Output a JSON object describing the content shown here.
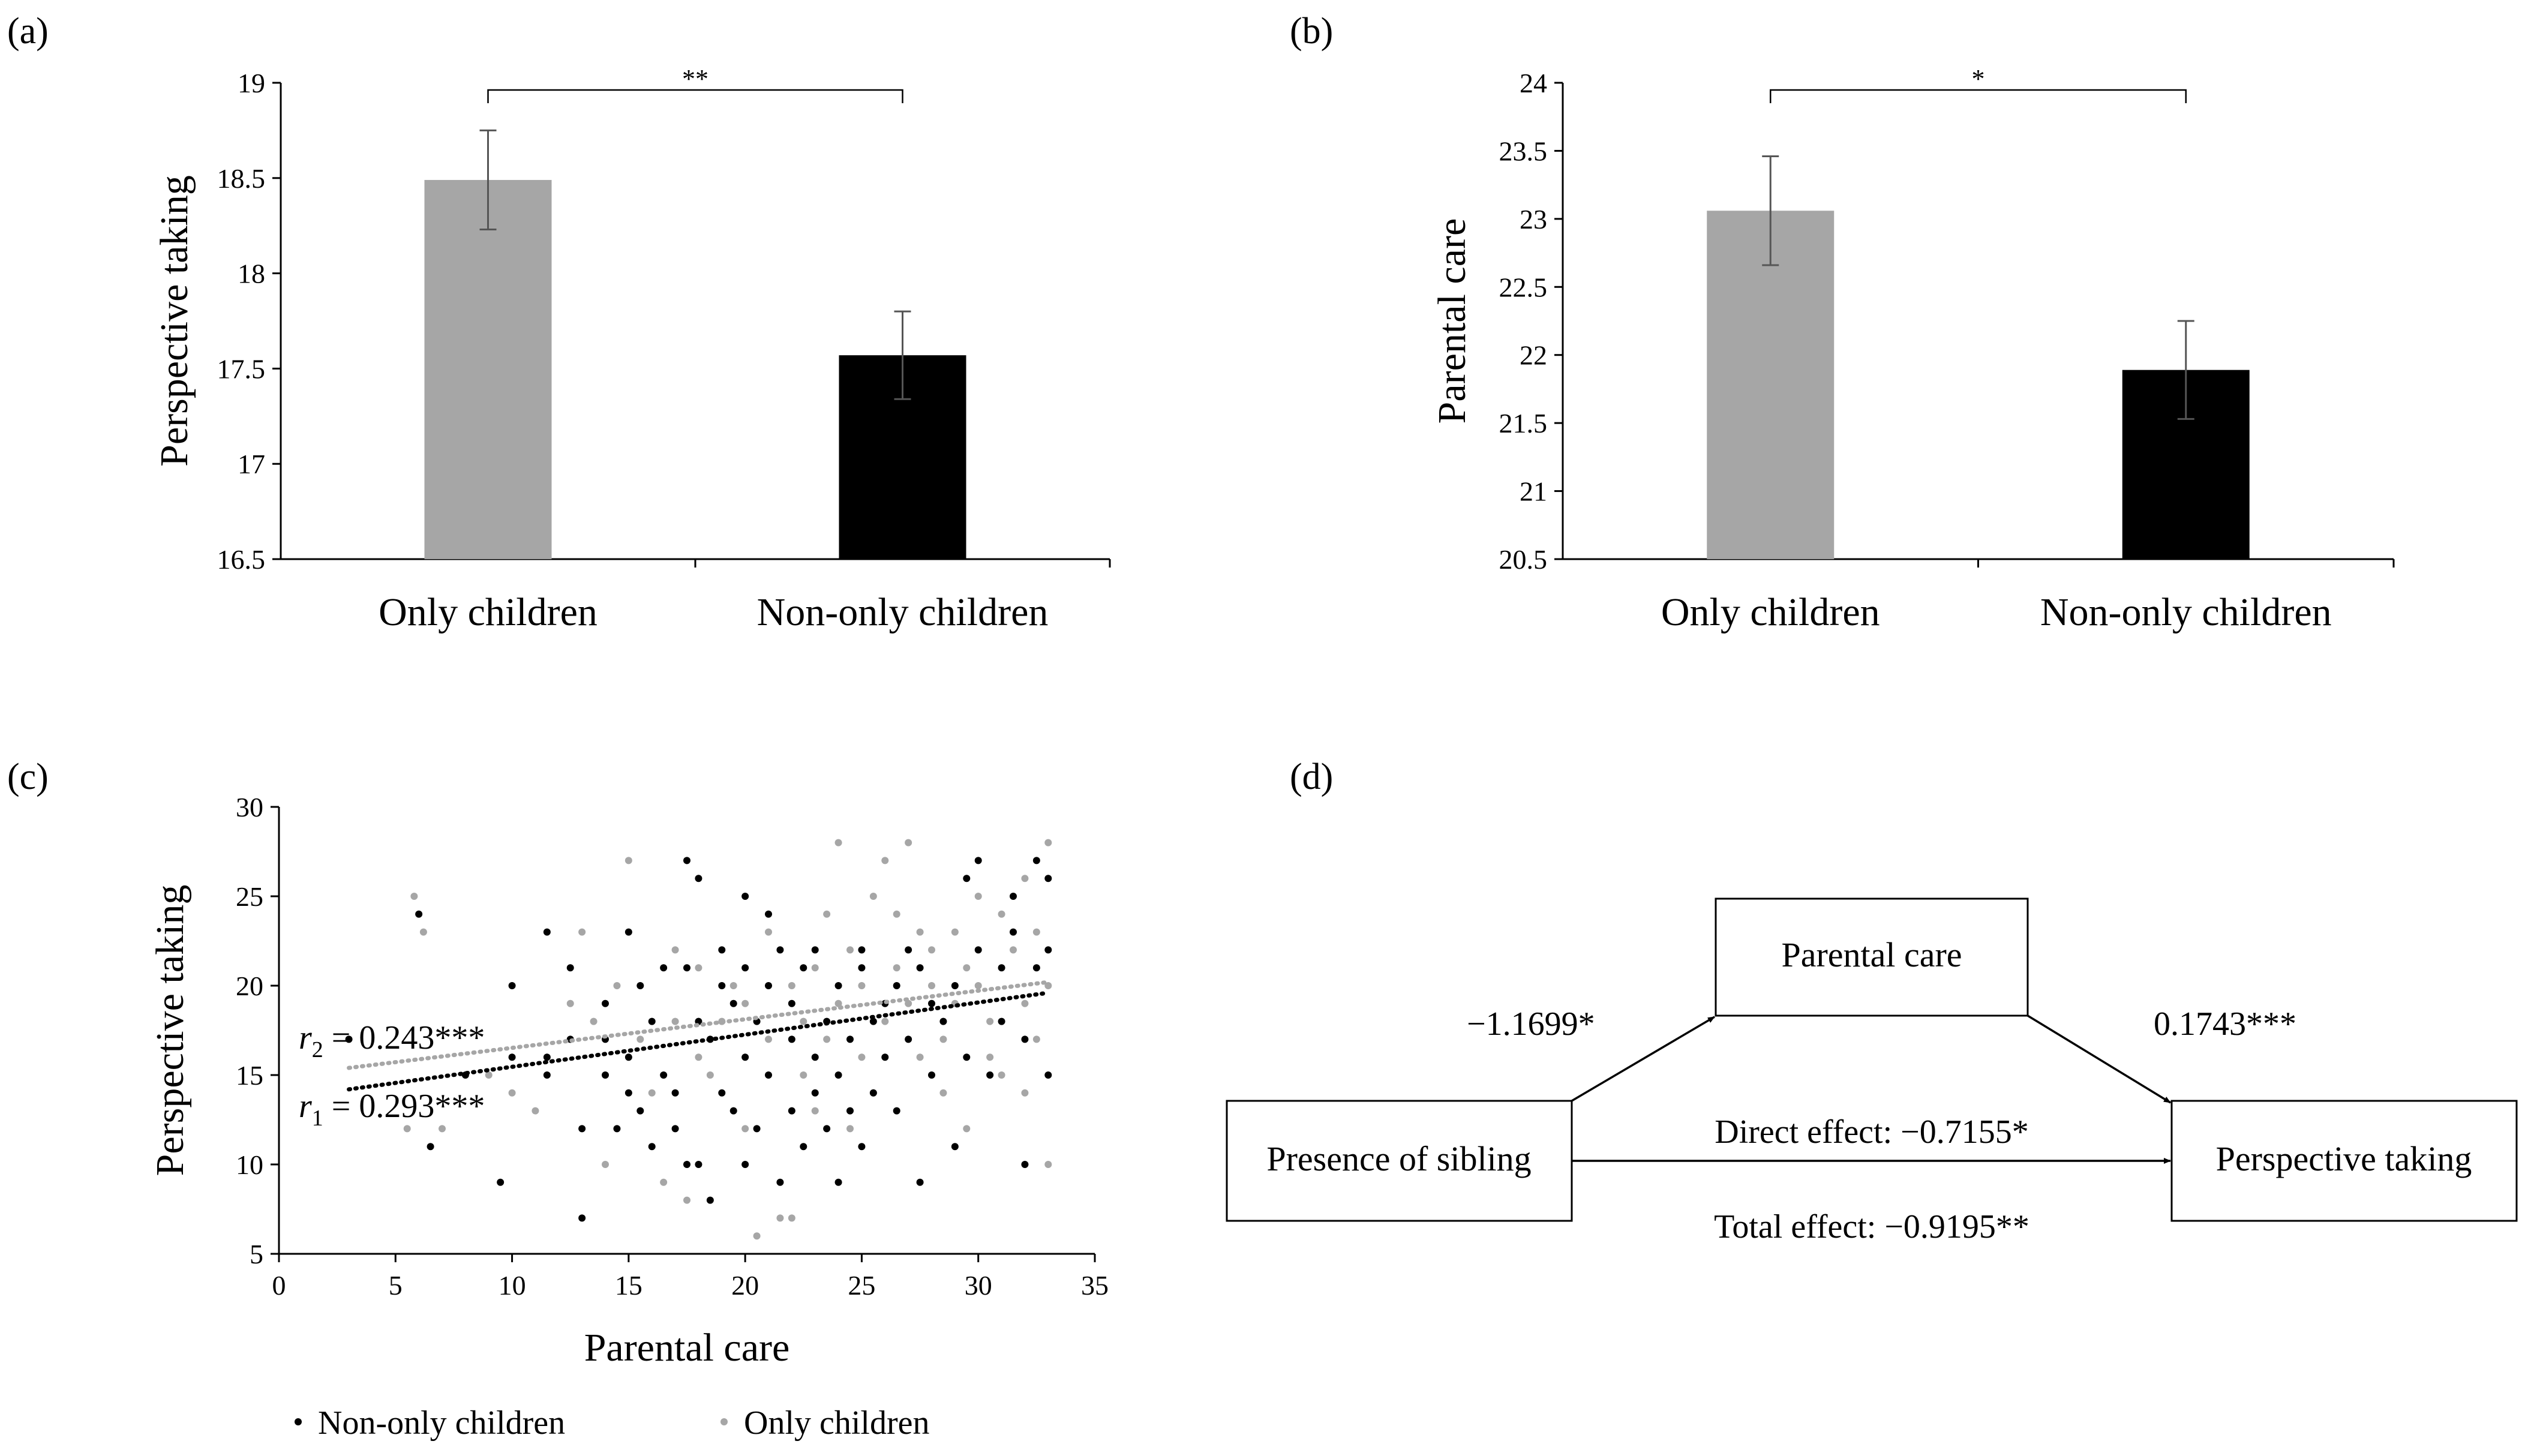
{
  "colors": {
    "only": "#a6a6a6",
    "nononly": "#000000",
    "axis": "#000000"
  },
  "panels": {
    "a": {
      "label": "(a)"
    },
    "b": {
      "label": "(b)"
    },
    "c": {
      "label": "(c)"
    },
    "d": {
      "label": "(d)"
    }
  },
  "chart_data": [
    {
      "id": "a",
      "type": "bar",
      "title": "",
      "xlabel": "",
      "ylabel": "Perspective taking",
      "categories": [
        "Only children",
        "Non-only children"
      ],
      "values": [
        18.49,
        17.57
      ],
      "errors": [
        0.26,
        0.23
      ],
      "ylim": [
        16.5,
        19
      ],
      "yticks": [
        "16.5",
        "17",
        "17.5",
        "18",
        "18.5",
        "19"
      ],
      "significance": "**"
    },
    {
      "id": "b",
      "type": "bar",
      "title": "",
      "xlabel": "",
      "ylabel": "Parental care",
      "categories": [
        "Only children",
        "Non-only children"
      ],
      "values": [
        23.06,
        21.89
      ],
      "errors": [
        0.4,
        0.36
      ],
      "ylim": [
        20.5,
        24
      ],
      "yticks": [
        "20.5",
        "21",
        "21.5",
        "22",
        "22.5",
        "23",
        "23.5",
        "24"
      ],
      "significance": "*"
    },
    {
      "id": "c",
      "type": "scatter",
      "xlabel": "Parental care",
      "ylabel": "Perspective taking",
      "xlim": [
        0,
        35
      ],
      "ylim": [
        5,
        30
      ],
      "xticks": [
        "0",
        "5",
        "10",
        "15",
        "20",
        "25",
        "30",
        "35"
      ],
      "yticks": [
        "5",
        "10",
        "15",
        "20",
        "25",
        "30"
      ],
      "annotations": {
        "r2_sym": "r",
        "r2_sub": "2",
        "r2_text": " = 0.243***",
        "r1_sym": "r",
        "r1_sub": "1",
        "r1_text": " = 0.293***"
      },
      "series": [
        {
          "name": "Non-only children",
          "color": "#000000",
          "trend": [
            [
              3,
              14.2
            ],
            [
              33,
              19.6
            ]
          ],
          "points": [
            [
              3,
              17
            ],
            [
              6,
              24
            ],
            [
              6.5,
              11
            ],
            [
              8,
              15
            ],
            [
              9.5,
              9
            ],
            [
              10,
              20
            ],
            [
              10,
              16
            ],
            [
              11.5,
              23
            ],
            [
              11.5,
              16
            ],
            [
              11.5,
              15
            ],
            [
              12.5,
              21
            ],
            [
              12.5,
              17
            ],
            [
              13,
              7
            ],
            [
              13,
              12
            ],
            [
              14,
              19
            ],
            [
              14,
              17
            ],
            [
              14,
              15
            ],
            [
              14.5,
              12
            ],
            [
              15,
              23
            ],
            [
              15,
              14
            ],
            [
              15,
              16
            ],
            [
              15.5,
              13
            ],
            [
              15.5,
              20
            ],
            [
              16,
              18
            ],
            [
              16,
              11
            ],
            [
              16.5,
              21
            ],
            [
              16.5,
              15
            ],
            [
              17,
              14
            ],
            [
              17,
              12
            ],
            [
              17.5,
              27
            ],
            [
              17.5,
              10
            ],
            [
              17.5,
              21
            ],
            [
              18,
              26
            ],
            [
              18,
              10
            ],
            [
              18,
              18
            ],
            [
              18.5,
              8
            ],
            [
              18.5,
              17
            ],
            [
              19,
              22
            ],
            [
              19,
              20
            ],
            [
              19,
              14
            ],
            [
              19.5,
              19
            ],
            [
              19.5,
              13
            ],
            [
              20,
              25
            ],
            [
              20,
              21
            ],
            [
              20,
              10
            ],
            [
              20,
              16
            ],
            [
              20.5,
              18
            ],
            [
              20.5,
              12
            ],
            [
              21,
              24
            ],
            [
              21,
              20
            ],
            [
              21,
              15
            ],
            [
              21.5,
              22
            ],
            [
              21.5,
              9
            ],
            [
              22,
              17
            ],
            [
              22,
              19
            ],
            [
              22,
              13
            ],
            [
              22.5,
              21
            ],
            [
              22.5,
              11
            ],
            [
              23,
              22
            ],
            [
              23,
              16
            ],
            [
              23,
              14
            ],
            [
              23.5,
              18
            ],
            [
              23.5,
              12
            ],
            [
              24,
              20
            ],
            [
              24,
              9
            ],
            [
              24,
              15
            ],
            [
              24.5,
              17
            ],
            [
              24.5,
              13
            ],
            [
              25,
              22
            ],
            [
              25,
              21
            ],
            [
              25,
              11
            ],
            [
              25.5,
              18
            ],
            [
              25.5,
              14
            ],
            [
              26,
              16
            ],
            [
              26,
              19
            ],
            [
              26.5,
              20
            ],
            [
              26.5,
              13
            ],
            [
              27,
              22
            ],
            [
              27,
              17
            ],
            [
              27.5,
              9
            ],
            [
              27.5,
              21
            ],
            [
              28,
              19
            ],
            [
              28,
              15
            ],
            [
              28.5,
              18
            ],
            [
              29,
              20
            ],
            [
              29,
              11
            ],
            [
              29.5,
              26
            ],
            [
              29.5,
              16
            ],
            [
              30,
              27
            ],
            [
              30,
              22
            ],
            [
              30.5,
              15
            ],
            [
              31,
              21
            ],
            [
              31,
              18
            ],
            [
              31.5,
              25
            ],
            [
              31.5,
              23
            ],
            [
              32,
              10
            ],
            [
              32,
              17
            ],
            [
              32.5,
              27
            ],
            [
              32.5,
              21
            ],
            [
              33,
              26
            ],
            [
              33,
              22
            ],
            [
              33,
              15
            ]
          ]
        },
        {
          "name": "Only children",
          "color": "#a6a6a6",
          "trend": [
            [
              3,
              15.4
            ],
            [
              33,
              20.2
            ]
          ],
          "points": [
            [
              5.5,
              12
            ],
            [
              5.8,
              25
            ],
            [
              6.2,
              23
            ],
            [
              7,
              12
            ],
            [
              9,
              15
            ],
            [
              10,
              14
            ],
            [
              11,
              13
            ],
            [
              12.5,
              19
            ],
            [
              13,
              23
            ],
            [
              13.5,
              18
            ],
            [
              14,
              10
            ],
            [
              14.5,
              20
            ],
            [
              15,
              27
            ],
            [
              15.5,
              17
            ],
            [
              16,
              14
            ],
            [
              16.5,
              9
            ],
            [
              17,
              18
            ],
            [
              17,
              22
            ],
            [
              17.5,
              8
            ],
            [
              18,
              21
            ],
            [
              18,
              16
            ],
            [
              18.5,
              15
            ],
            [
              19,
              18
            ],
            [
              19.5,
              20
            ],
            [
              20,
              19
            ],
            [
              20,
              12
            ],
            [
              20.5,
              6
            ],
            [
              21,
              23
            ],
            [
              21,
              17
            ],
            [
              21.5,
              7
            ],
            [
              22,
              20
            ],
            [
              22,
              7
            ],
            [
              22.5,
              18
            ],
            [
              22.5,
              15
            ],
            [
              23,
              21
            ],
            [
              23,
              13
            ],
            [
              23.5,
              24
            ],
            [
              23.5,
              17
            ],
            [
              24,
              28
            ],
            [
              24,
              19
            ],
            [
              24.5,
              22
            ],
            [
              24.5,
              12
            ],
            [
              25,
              20
            ],
            [
              25,
              16
            ],
            [
              25.5,
              25
            ],
            [
              25.5,
              14
            ],
            [
              26,
              27
            ],
            [
              26,
              18
            ],
            [
              26.5,
              24
            ],
            [
              26.5,
              21
            ],
            [
              27,
              28
            ],
            [
              27,
              19
            ],
            [
              27.5,
              23
            ],
            [
              27.5,
              16
            ],
            [
              28,
              22
            ],
            [
              28,
              20
            ],
            [
              28.5,
              17
            ],
            [
              28.5,
              14
            ],
            [
              29,
              19
            ],
            [
              29,
              23
            ],
            [
              29.5,
              21
            ],
            [
              29.5,
              12
            ],
            [
              30,
              20
            ],
            [
              30,
              25
            ],
            [
              30.5,
              18
            ],
            [
              30.5,
              16
            ],
            [
              31,
              24
            ],
            [
              31,
              15
            ],
            [
              31.5,
              22
            ],
            [
              32,
              26
            ],
            [
              32,
              19
            ],
            [
              32,
              14
            ],
            [
              32.5,
              23
            ],
            [
              32.5,
              17
            ],
            [
              33,
              28
            ],
            [
              33,
              20
            ],
            [
              33,
              10
            ]
          ]
        }
      ],
      "legend": [
        "Non-only children",
        "Only children"
      ]
    }
  ],
  "diagram": {
    "mediator": "Parental care",
    "predictor": "Presence of sibling",
    "outcome": "Perspective taking",
    "path_a": "−1.1699*",
    "path_b": "0.1743***",
    "direct": "Direct effect: −0.7155*",
    "total": "Total effect: −0.9195**"
  }
}
